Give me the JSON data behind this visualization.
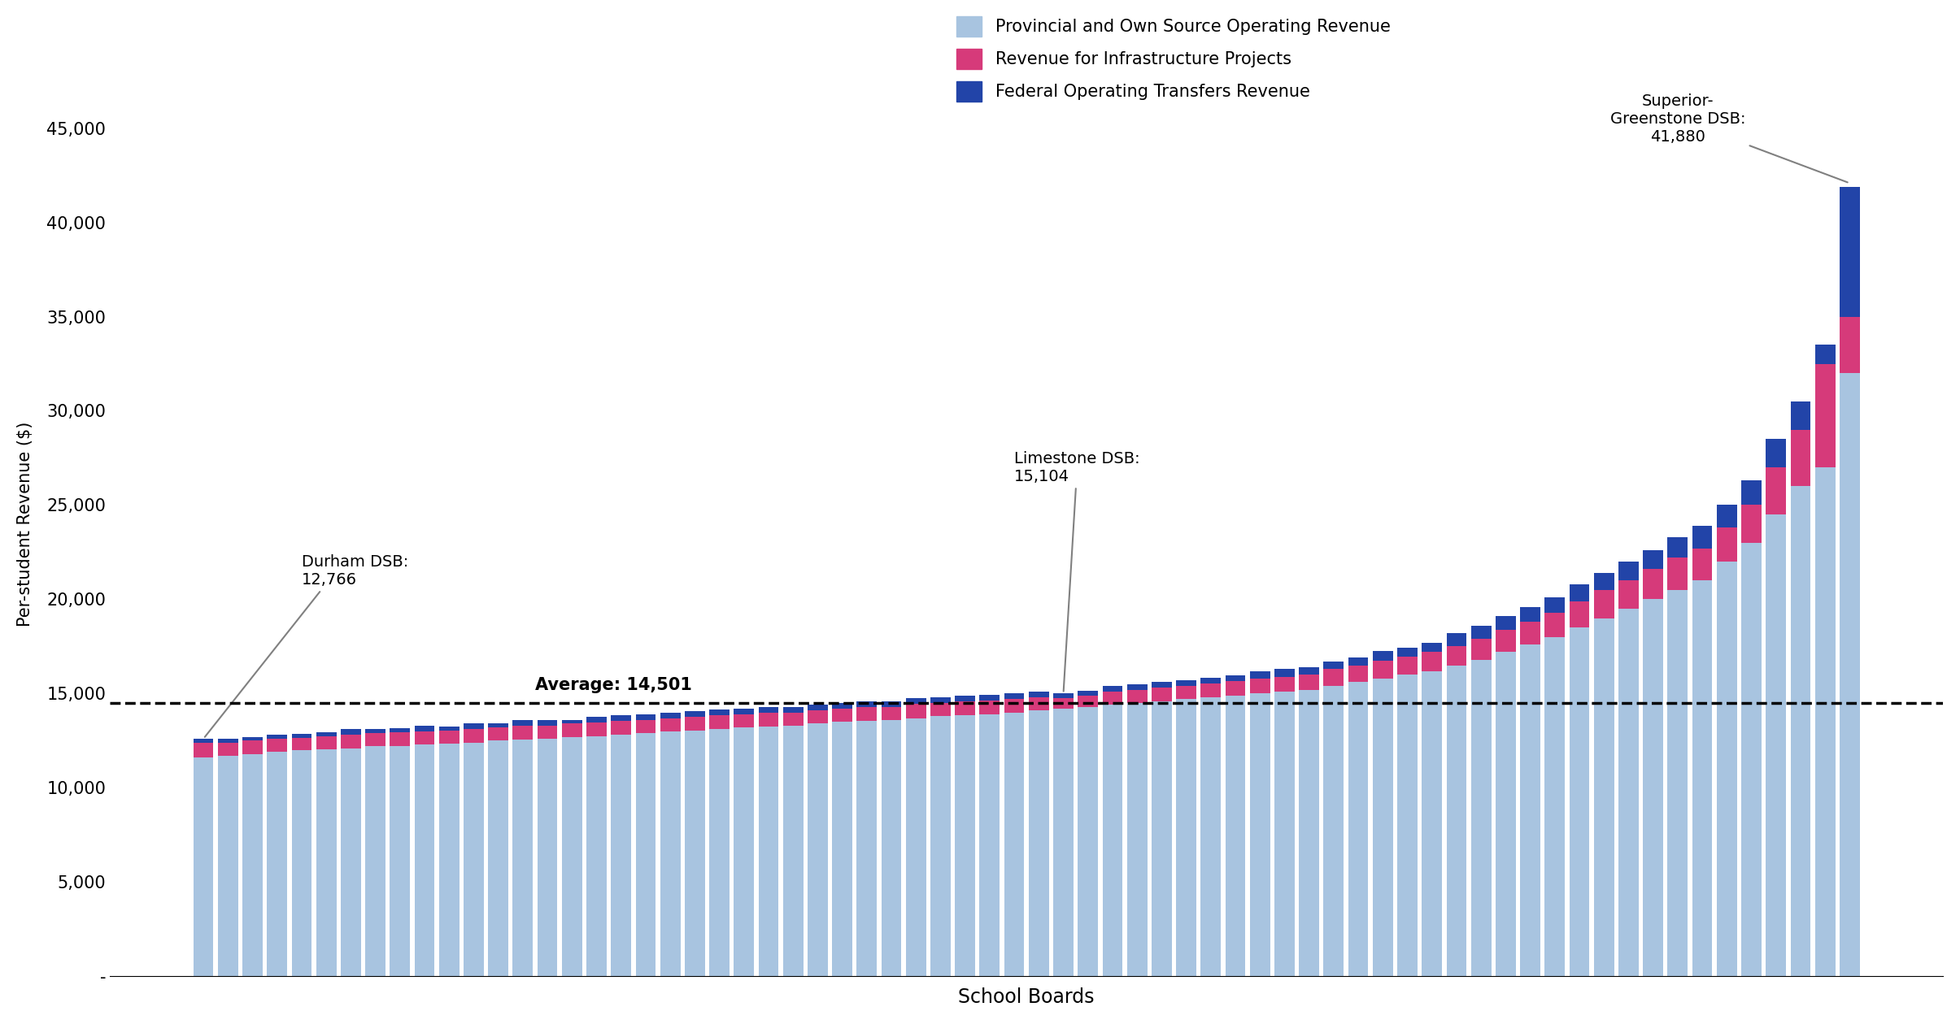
{
  "title": "",
  "xlabel": "School Boards",
  "ylabel": "Per-student Revenue ($)",
  "average": 14501,
  "average_label": "Average: 14,501",
  "color_provincial": "#a8c4e0",
  "color_infra": "#d63a7a",
  "color_federal": "#2244a8",
  "legend_labels": [
    "Provincial and Own Source Operating Revenue",
    "Revenue for Infrastructure Projects",
    "Federal Operating Transfers Revenue"
  ],
  "ylim_max": 48000,
  "yticks": [
    0,
    5000,
    10000,
    15000,
    20000,
    25000,
    30000,
    35000,
    40000,
    45000
  ],
  "ytick_labels": [
    "-",
    "5,000",
    "10,000",
    "15,000",
    "20,000",
    "25,000",
    "30,000",
    "35,000",
    "40,000",
    "45,000"
  ],
  "bars": [
    {
      "provincial": 11600,
      "infra": 800,
      "federal": 200
    },
    {
      "provincial": 11700,
      "infra": 700,
      "federal": 200
    },
    {
      "provincial": 11800,
      "infra": 700,
      "federal": 200
    },
    {
      "provincial": 11900,
      "infra": 700,
      "federal": 200
    },
    {
      "provincial": 12000,
      "infra": 650,
      "federal": 200
    },
    {
      "provincial": 12050,
      "infra": 700,
      "federal": 200
    },
    {
      "provincial": 12100,
      "infra": 700,
      "federal": 300
    },
    {
      "provincial": 12200,
      "infra": 700,
      "federal": 200
    },
    {
      "provincial": 12200,
      "infra": 750,
      "federal": 200
    },
    {
      "provincial": 12300,
      "infra": 700,
      "federal": 300
    },
    {
      "provincial": 12350,
      "infra": 700,
      "federal": 200
    },
    {
      "provincial": 12400,
      "infra": 700,
      "federal": 300
    },
    {
      "provincial": 12500,
      "infra": 700,
      "federal": 200
    },
    {
      "provincial": 12550,
      "infra": 750,
      "federal": 300
    },
    {
      "provincial": 12600,
      "infra": 700,
      "federal": 300
    },
    {
      "provincial": 12700,
      "infra": 700,
      "federal": 200
    },
    {
      "provincial": 12750,
      "infra": 700,
      "federal": 300
    },
    {
      "provincial": 12800,
      "infra": 750,
      "federal": 300
    },
    {
      "provincial": 12900,
      "infra": 700,
      "federal": 300
    },
    {
      "provincial": 13000,
      "infra": 700,
      "federal": 300
    },
    {
      "provincial": 13050,
      "infra": 700,
      "federal": 300
    },
    {
      "provincial": 13100,
      "infra": 750,
      "federal": 300
    },
    {
      "provincial": 13200,
      "infra": 700,
      "federal": 300
    },
    {
      "provincial": 13250,
      "infra": 750,
      "federal": 300
    },
    {
      "provincial": 13300,
      "infra": 700,
      "federal": 300
    },
    {
      "provincial": 13400,
      "infra": 700,
      "federal": 300
    },
    {
      "provincial": 13500,
      "infra": 700,
      "federal": 300
    },
    {
      "provincial": 13550,
      "infra": 750,
      "federal": 300
    },
    {
      "provincial": 13600,
      "infra": 700,
      "federal": 300
    },
    {
      "provincial": 13700,
      "infra": 750,
      "federal": 300
    },
    {
      "provincial": 13800,
      "infra": 700,
      "federal": 300
    },
    {
      "provincial": 13850,
      "infra": 750,
      "federal": 300
    },
    {
      "provincial": 13900,
      "infra": 750,
      "federal": 300
    },
    {
      "provincial": 14000,
      "infra": 700,
      "federal": 300
    },
    {
      "provincial": 14100,
      "infra": 700,
      "federal": 300
    },
    {
      "provincial": 14200,
      "infra": 550,
      "federal": 250
    },
    {
      "provincial": 14300,
      "infra": 600,
      "federal": 250
    },
    {
      "provincial": 14400,
      "infra": 700,
      "federal": 300
    },
    {
      "provincial": 14500,
      "infra": 700,
      "federal": 300
    },
    {
      "provincial": 14600,
      "infra": 700,
      "federal": 300
    },
    {
      "provincial": 14700,
      "infra": 700,
      "federal": 300
    },
    {
      "provincial": 14800,
      "infra": 750,
      "federal": 300
    },
    {
      "provincial": 14900,
      "infra": 750,
      "federal": 300
    },
    {
      "provincial": 15000,
      "infra": 800,
      "federal": 400
    },
    {
      "provincial": 15100,
      "infra": 800,
      "federal": 400
    },
    {
      "provincial": 15200,
      "infra": 800,
      "federal": 400
    },
    {
      "provincial": 15400,
      "infra": 900,
      "federal": 400
    },
    {
      "provincial": 15600,
      "infra": 900,
      "federal": 400
    },
    {
      "provincial": 15800,
      "infra": 950,
      "federal": 500
    },
    {
      "provincial": 16000,
      "infra": 950,
      "federal": 500
    },
    {
      "provincial": 16200,
      "infra": 1000,
      "federal": 500
    },
    {
      "provincial": 16500,
      "infra": 1000,
      "federal": 700
    },
    {
      "provincial": 16800,
      "infra": 1100,
      "federal": 700
    },
    {
      "provincial": 17200,
      "infra": 1200,
      "federal": 700
    },
    {
      "provincial": 17600,
      "infra": 1200,
      "federal": 800
    },
    {
      "provincial": 18000,
      "infra": 1300,
      "federal": 800
    },
    {
      "provincial": 18500,
      "infra": 1400,
      "federal": 900
    },
    {
      "provincial": 19000,
      "infra": 1500,
      "federal": 900
    },
    {
      "provincial": 19500,
      "infra": 1500,
      "federal": 1000
    },
    {
      "provincial": 20000,
      "infra": 1600,
      "federal": 1000
    },
    {
      "provincial": 20500,
      "infra": 1700,
      "federal": 1100
    },
    {
      "provincial": 21000,
      "infra": 1700,
      "federal": 1200
    },
    {
      "provincial": 22000,
      "infra": 1800,
      "federal": 1200
    },
    {
      "provincial": 23000,
      "infra": 2000,
      "federal": 1300
    },
    {
      "provincial": 24500,
      "infra": 2500,
      "federal": 1500
    },
    {
      "provincial": 26000,
      "infra": 3000,
      "federal": 1500
    },
    {
      "provincial": 27000,
      "infra": 5500,
      "federal": 1000
    },
    {
      "provincial": 32000,
      "infra": 3000,
      "federal": 6880
    }
  ],
  "durham_idx": 0,
  "limestone_idx": 35,
  "superior_idx": 67
}
